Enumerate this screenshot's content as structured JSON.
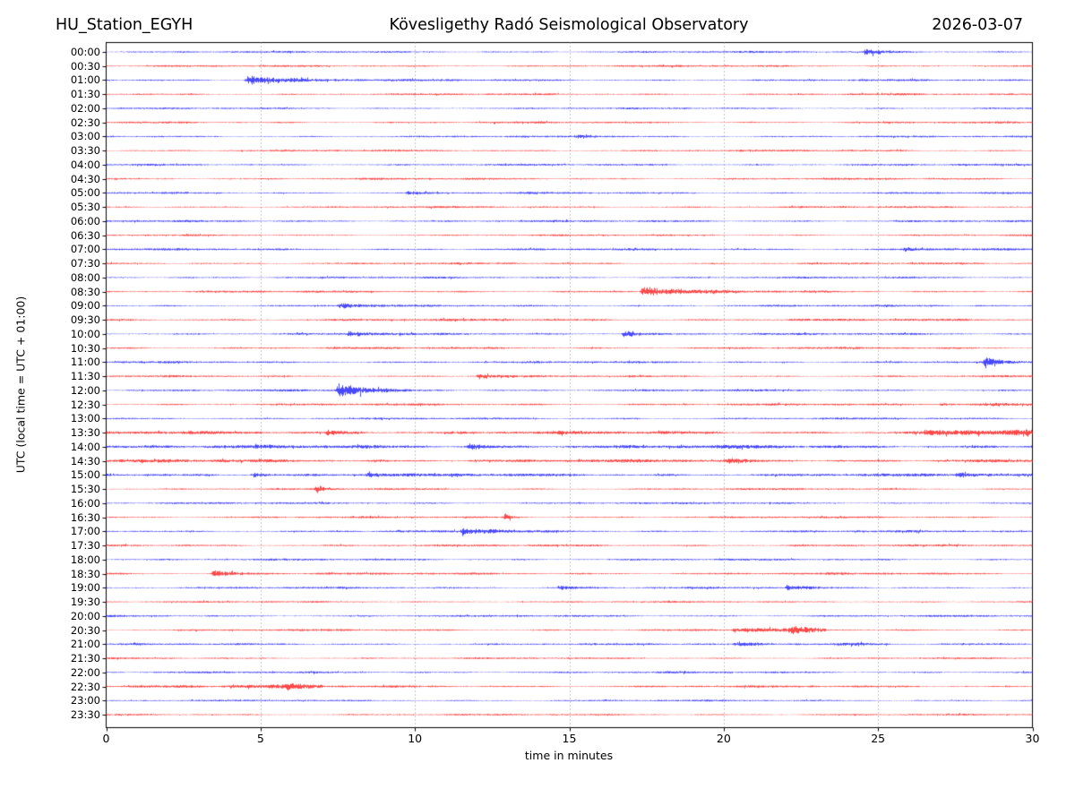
{
  "header": {
    "station": "HU_Station_EGYH",
    "observatory": "Kövesligethy Radó Seismological Observatory",
    "date": "2026-03-07"
  },
  "chart_data": {
    "type": "line",
    "subtype": "helicorder-day-plot",
    "title": "Kövesligethy Radó Seismological Observatory",
    "xlabel": "time in minutes",
    "ylabel": "UTC (local time = UTC + 01:00)",
    "xlim": [
      0,
      30
    ],
    "x_ticks": [
      0,
      5,
      10,
      15,
      20,
      25,
      30
    ],
    "grid_minutes": [
      5,
      10,
      15,
      20,
      25
    ],
    "grid_on": true,
    "row_interval_minutes": 30,
    "colors": {
      "hour_trace": "#0000ff",
      "half_hour_trace": "#ff0000",
      "grid": "#8a8a8a",
      "frame": "#000000",
      "text": "#000000"
    },
    "rows": [
      {
        "label": "00:00",
        "color": "blue",
        "noise": 0.9,
        "events": [
          {
            "t": 24.6,
            "dur": 0.8,
            "amp": 2.8
          }
        ]
      },
      {
        "label": "00:30",
        "color": "red",
        "noise": 0.9,
        "events": []
      },
      {
        "label": "01:00",
        "color": "blue",
        "noise": 0.9,
        "events": [
          {
            "t": 4.6,
            "dur": 1.6,
            "amp": 5.0
          }
        ]
      },
      {
        "label": "01:30",
        "color": "red",
        "noise": 0.9,
        "events": []
      },
      {
        "label": "02:00",
        "color": "blue",
        "noise": 0.8,
        "events": []
      },
      {
        "label": "02:30",
        "color": "red",
        "noise": 0.9,
        "events": []
      },
      {
        "label": "03:00",
        "color": "blue",
        "noise": 0.8,
        "events": [
          {
            "t": 15.3,
            "dur": 0.8,
            "amp": 1.6
          }
        ]
      },
      {
        "label": "03:30",
        "color": "red",
        "noise": 0.9,
        "events": []
      },
      {
        "label": "04:00",
        "color": "blue",
        "noise": 0.9,
        "events": []
      },
      {
        "label": "04:30",
        "color": "red",
        "noise": 0.9,
        "events": []
      },
      {
        "label": "05:00",
        "color": "blue",
        "noise": 0.9,
        "events": [
          {
            "t": 9.8,
            "dur": 0.5,
            "amp": 1.6
          }
        ]
      },
      {
        "label": "05:30",
        "color": "red",
        "noise": 0.9,
        "events": []
      },
      {
        "label": "06:00",
        "color": "blue",
        "noise": 1.0,
        "events": []
      },
      {
        "label": "06:30",
        "color": "red",
        "noise": 0.8,
        "events": []
      },
      {
        "label": "07:00",
        "color": "blue",
        "noise": 1.0,
        "events": [
          {
            "t": 25.9,
            "dur": 0.9,
            "amp": 2.2
          }
        ]
      },
      {
        "label": "07:30",
        "color": "red",
        "noise": 0.9,
        "events": []
      },
      {
        "label": "08:00",
        "color": "blue",
        "noise": 0.9,
        "events": []
      },
      {
        "label": "08:30",
        "color": "red",
        "noise": 1.0,
        "events": [
          {
            "t": 17.4,
            "dur": 1.4,
            "amp": 5.0
          }
        ]
      },
      {
        "label": "09:00",
        "color": "blue",
        "noise": 0.9,
        "events": [
          {
            "t": 7.6,
            "dur": 0.7,
            "amp": 3.0
          }
        ]
      },
      {
        "label": "09:30",
        "color": "red",
        "noise": 1.1,
        "events": []
      },
      {
        "label": "10:00",
        "color": "blue",
        "noise": 1.0,
        "events": [
          {
            "t": 7.9,
            "dur": 0.7,
            "amp": 2.8
          },
          {
            "t": 16.8,
            "dur": 0.5,
            "amp": 4.0
          }
        ]
      },
      {
        "label": "10:30",
        "color": "red",
        "noise": 1.0,
        "events": []
      },
      {
        "label": "11:00",
        "color": "blue",
        "noise": 1.0,
        "events": [
          {
            "t": 28.5,
            "dur": 0.35,
            "amp": 6.0
          }
        ]
      },
      {
        "label": "11:30",
        "color": "red",
        "noise": 0.9,
        "events": [
          {
            "t": 12.1,
            "dur": 0.6,
            "amp": 3.0
          }
        ]
      },
      {
        "label": "12:00",
        "color": "blue",
        "noise": 1.0,
        "events": [
          {
            "t": 7.55,
            "dur": 0.9,
            "amp": 8.0
          }
        ]
      },
      {
        "label": "12:30",
        "color": "red",
        "noise": 1.0,
        "events": [
          {
            "t0": 27.0,
            "t1": 30.0,
            "amp": 1.5
          }
        ]
      },
      {
        "label": "13:00",
        "color": "blue",
        "noise": 0.9,
        "events": []
      },
      {
        "label": "13:30",
        "color": "red",
        "noise": 1.5,
        "events": [
          {
            "t": 7.2,
            "dur": 0.6,
            "amp": 2.6
          },
          {
            "t0": 26.5,
            "t1": 30.0,
            "amp": 1.5
          }
        ]
      },
      {
        "label": "14:00",
        "color": "blue",
        "noise": 1.7,
        "events": [
          {
            "t": 11.8,
            "dur": 0.7,
            "amp": 2.6
          }
        ]
      },
      {
        "label": "14:30",
        "color": "red",
        "noise": 1.5,
        "events": [
          {
            "t": 20.2,
            "dur": 0.5,
            "amp": 2.2
          }
        ]
      },
      {
        "label": "15:00",
        "color": "blue",
        "noise": 1.4,
        "events": [
          {
            "t": 4.8,
            "dur": 0.5,
            "amp": 2.2
          },
          {
            "t": 8.5,
            "dur": 0.5,
            "amp": 2.2
          },
          {
            "t": 27.6,
            "dur": 0.6,
            "amp": 2.2
          }
        ]
      },
      {
        "label": "15:30",
        "color": "red",
        "noise": 0.9,
        "events": [
          {
            "t": 6.85,
            "dur": 0.15,
            "amp": 4.5
          }
        ]
      },
      {
        "label": "16:00",
        "color": "blue",
        "noise": 0.9,
        "events": []
      },
      {
        "label": "16:30",
        "color": "red",
        "noise": 0.9,
        "events": [
          {
            "t": 12.95,
            "dur": 0.15,
            "amp": 4.5
          }
        ]
      },
      {
        "label": "17:00",
        "color": "blue",
        "noise": 1.0,
        "events": [
          {
            "t": 11.6,
            "dur": 1.1,
            "amp": 3.6
          }
        ]
      },
      {
        "label": "17:30",
        "color": "red",
        "noise": 1.0,
        "events": []
      },
      {
        "label": "18:00",
        "color": "blue",
        "noise": 0.9,
        "events": []
      },
      {
        "label": "18:30",
        "color": "red",
        "noise": 1.0,
        "events": [
          {
            "t": 3.5,
            "dur": 0.9,
            "amp": 3.2
          }
        ]
      },
      {
        "label": "19:00",
        "color": "blue",
        "noise": 0.9,
        "events": [
          {
            "t": 14.7,
            "dur": 0.5,
            "amp": 2.8
          },
          {
            "t": 22.1,
            "dur": 0.6,
            "amp": 2.2
          }
        ]
      },
      {
        "label": "19:30",
        "color": "red",
        "noise": 0.8,
        "events": []
      },
      {
        "label": "20:00",
        "color": "blue",
        "noise": 0.9,
        "events": []
      },
      {
        "label": "20:30",
        "color": "red",
        "noise": 0.9,
        "events": [
          {
            "t0": 20.3,
            "t1": 23.3,
            "amp": 1.2
          },
          {
            "t": 22.2,
            "dur": 0.4,
            "amp": 3.0
          }
        ]
      },
      {
        "label": "21:00",
        "color": "blue",
        "noise": 0.9,
        "events": [
          {
            "t0": 20.3,
            "t1": 25.4,
            "amp": 1.3
          }
        ]
      },
      {
        "label": "21:30",
        "color": "red",
        "noise": 0.8,
        "events": []
      },
      {
        "label": "22:00",
        "color": "blue",
        "noise": 0.9,
        "events": []
      },
      {
        "label": "22:30",
        "color": "red",
        "noise": 1.0,
        "events": [
          {
            "t0": 0.0,
            "t1": 7.0,
            "amp": 1.1
          },
          {
            "t": 5.9,
            "dur": 0.4,
            "amp": 2.0
          }
        ]
      },
      {
        "label": "23:00",
        "color": "blue",
        "noise": 0.8,
        "events": []
      },
      {
        "label": "23:30",
        "color": "red",
        "noise": 0.8,
        "events": []
      }
    ]
  }
}
